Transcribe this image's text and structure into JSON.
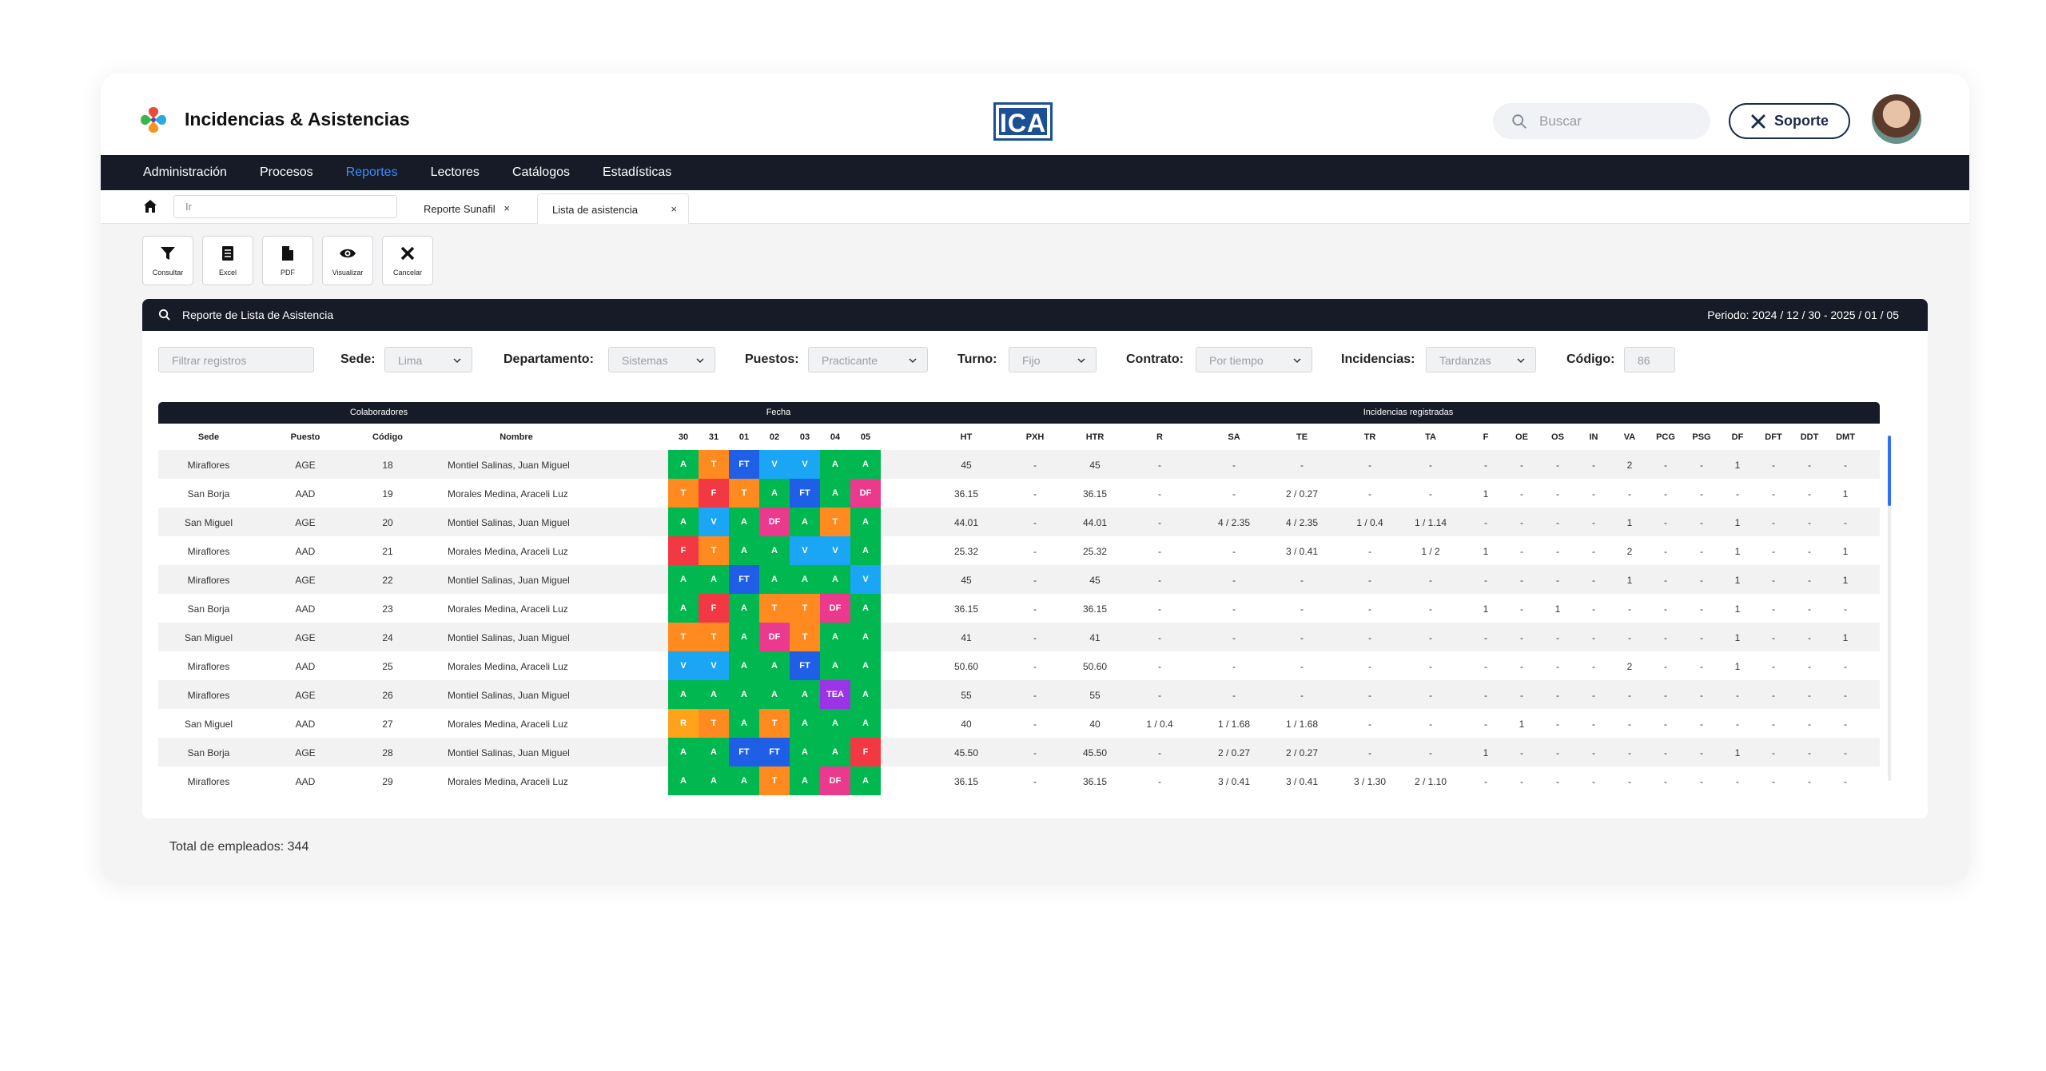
{
  "app": {
    "title": "Incidencias & Asistencias",
    "brand": "ICA"
  },
  "search": {
    "placeholder": "Buscar"
  },
  "support_label": "Soporte",
  "nav": [
    "Administración",
    "Procesos",
    "Reportes",
    "Lectores",
    "Catálogos",
    "Estadísticas"
  ],
  "nav_active": "Reportes",
  "tabs": {
    "ir_placeholder": "Ir",
    "items": [
      "Reporte Sunafil",
      "Lista de asistencia"
    ],
    "close": "×"
  },
  "toolbar": [
    {
      "label": "Consultar",
      "icon": "filter-icon"
    },
    {
      "label": "Excel",
      "icon": "excel-icon"
    },
    {
      "label": "PDF",
      "icon": "pdf-icon"
    },
    {
      "label": "Visualizar",
      "icon": "eye-icon"
    },
    {
      "label": "Cancelar",
      "icon": "close-icon"
    }
  ],
  "report": {
    "title": "Reporte de Lista de Asistencia",
    "period": "Periodo: 2024 / 12 / 30 - 2025 / 01 / 05"
  },
  "filters": {
    "search_placeholder": "Filtrar registros",
    "sede_label": "Sede:",
    "sede": "Lima",
    "dep_label": "Departamento:",
    "dep": "Sistemas",
    "puestos_label": "Puestos:",
    "puestos": "Practicante",
    "turno_label": "Turno:",
    "turno": "Fijo",
    "contrato_label": "Contrato:",
    "contrato": "Por tiempo",
    "inc_label": "Incidencias:",
    "inc": "Tardanzas",
    "codigo_label": "Código:",
    "codigo": "86"
  },
  "groups": [
    "Colaboradores",
    "Fecha",
    "Incidencias registradas"
  ],
  "columns": [
    "Sede",
    "Puesto",
    "Código",
    "Nombre",
    "30",
    "31",
    "01",
    "02",
    "03",
    "04",
    "05",
    "HT",
    "PXH",
    "HTR",
    "R",
    "SA",
    "TE",
    "TR",
    "TA",
    "F",
    "OE",
    "OS",
    "IN",
    "VA",
    "PCG",
    "PSG",
    "DF",
    "DFT",
    "DDT",
    "DMT"
  ],
  "status_colors": {
    "A": "#00b84f",
    "T": "#ff8a1f",
    "FT": "#1f5fe6",
    "V": "#1aa6f5",
    "F": "#f23842",
    "DF": "#eb3a8e",
    "TEA": "#9b34e6",
    "R": "#ffa31a"
  },
  "rows": [
    {
      "sede": "Miraflores",
      "puesto": "AGE",
      "codigo": "18",
      "nombre": "Montiel Salinas, Juan Miguel",
      "dias": [
        "A",
        "T",
        "FT",
        "V",
        "V",
        "A",
        "A"
      ],
      "inc": [
        "45",
        "-",
        "45",
        "-",
        "-",
        "-",
        "-",
        "-",
        "-",
        "-",
        "-",
        "-",
        "2",
        "-",
        "-",
        "1",
        "-",
        "-",
        "-"
      ]
    },
    {
      "sede": "San Borja",
      "puesto": "AAD",
      "codigo": "19",
      "nombre": "Morales Medina, Araceli Luz",
      "dias": [
        "T",
        "F",
        "T",
        "A",
        "FT",
        "A",
        "DF"
      ],
      "inc": [
        "36.15",
        "-",
        "36.15",
        "-",
        "-",
        "2 / 0.27",
        "-",
        "-",
        "1",
        "-",
        "-",
        "-",
        "-",
        "-",
        "-",
        "-",
        "-",
        "-",
        "1"
      ]
    },
    {
      "sede": "San Miguel",
      "puesto": "AGE",
      "codigo": "20",
      "nombre": "Montiel Salinas, Juan Miguel",
      "dias": [
        "A",
        "V",
        "A",
        "DF",
        "A",
        "T",
        "A"
      ],
      "inc": [
        "44.01",
        "-",
        "44.01",
        "-",
        "4 / 2.35",
        "4 / 2.35",
        "1 / 0.4",
        "1 / 1.14",
        "-",
        "-",
        "-",
        "-",
        "1",
        "-",
        "-",
        "1",
        "-",
        "-",
        "-"
      ]
    },
    {
      "sede": "Miraflores",
      "puesto": "AAD",
      "codigo": "21",
      "nombre": "Morales Medina, Araceli Luz",
      "dias": [
        "F",
        "T",
        "A",
        "A",
        "V",
        "V",
        "A"
      ],
      "inc": [
        "25.32",
        "-",
        "25.32",
        "-",
        "-",
        "3 / 0.41",
        "-",
        "1 / 2",
        "1",
        "-",
        "-",
        "-",
        "2",
        "-",
        "-",
        "1",
        "-",
        "-",
        "1"
      ]
    },
    {
      "sede": "Miraflores",
      "puesto": "AGE",
      "codigo": "22",
      "nombre": "Montiel Salinas, Juan Miguel",
      "dias": [
        "A",
        "A",
        "FT",
        "A",
        "A",
        "A",
        "V"
      ],
      "inc": [
        "45",
        "-",
        "45",
        "-",
        "-",
        "-",
        "-",
        "-",
        "-",
        "-",
        "-",
        "-",
        "1",
        "-",
        "-",
        "1",
        "-",
        "-",
        "1"
      ]
    },
    {
      "sede": "San Borja",
      "puesto": "AAD",
      "codigo": "23",
      "nombre": "Morales Medina, Araceli Luz",
      "dias": [
        "A",
        "F",
        "A",
        "T",
        "T",
        "DF",
        "A"
      ],
      "inc": [
        "36.15",
        "-",
        "36.15",
        "-",
        "-",
        "-",
        "-",
        "-",
        "1",
        "-",
        "1",
        "-",
        "-",
        "-",
        "-",
        "1",
        "-",
        "-",
        "-"
      ]
    },
    {
      "sede": "San Miguel",
      "puesto": "AGE",
      "codigo": "24",
      "nombre": "Montiel Salinas, Juan Miguel",
      "dias": [
        "T",
        "T",
        "A",
        "DF",
        "T",
        "A",
        "A"
      ],
      "inc": [
        "41",
        "-",
        "41",
        "-",
        "-",
        "-",
        "-",
        "-",
        "-",
        "-",
        "-",
        "-",
        "-",
        "-",
        "-",
        "1",
        "-",
        "-",
        "1"
      ]
    },
    {
      "sede": "Miraflores",
      "puesto": "AAD",
      "codigo": "25",
      "nombre": "Morales Medina, Araceli Luz",
      "dias": [
        "V",
        "V",
        "A",
        "A",
        "FT",
        "A",
        "A"
      ],
      "inc": [
        "50.60",
        "-",
        "50.60",
        "-",
        "-",
        "-",
        "-",
        "-",
        "-",
        "-",
        "-",
        "-",
        "2",
        "-",
        "-",
        "1",
        "-",
        "-",
        "-"
      ]
    },
    {
      "sede": "Miraflores",
      "puesto": "AGE",
      "codigo": "26",
      "nombre": "Montiel Salinas, Juan Miguel",
      "dias": [
        "A",
        "A",
        "A",
        "A",
        "A",
        "TEA",
        "A"
      ],
      "inc": [
        "55",
        "-",
        "55",
        "-",
        "-",
        "-",
        "-",
        "-",
        "-",
        "-",
        "-",
        "-",
        "-",
        "-",
        "-",
        "-",
        "-",
        "-",
        "-"
      ]
    },
    {
      "sede": "San Miguel",
      "puesto": "AAD",
      "codigo": "27",
      "nombre": "Morales Medina, Araceli Luz",
      "dias": [
        "R",
        "T",
        "A",
        "T",
        "A",
        "A",
        "A"
      ],
      "inc": [
        "40",
        "-",
        "40",
        "1 / 0.4",
        "1 / 1.68",
        "1 / 1.68",
        "-",
        "-",
        "-",
        "1",
        "-",
        "-",
        "-",
        "-",
        "-",
        "-",
        "-",
        "-",
        "-"
      ]
    },
    {
      "sede": "San Borja",
      "puesto": "AGE",
      "codigo": "28",
      "nombre": "Montiel Salinas, Juan Miguel",
      "dias": [
        "A",
        "A",
        "FT",
        "FT",
        "A",
        "A",
        "F"
      ],
      "inc": [
        "45.50",
        "-",
        "45.50",
        "-",
        "2 / 0.27",
        "2 / 0.27",
        "-",
        "-",
        "1",
        "-",
        "-",
        "-",
        "-",
        "-",
        "-",
        "1",
        "-",
        "-",
        "-"
      ]
    },
    {
      "sede": "Miraflores",
      "puesto": "AAD",
      "codigo": "29",
      "nombre": "Morales Medina, Araceli Luz",
      "dias": [
        "A",
        "A",
        "A",
        "T",
        "A",
        "DF",
        "A"
      ],
      "inc": [
        "36.15",
        "-",
        "36.15",
        "-",
        "3 / 0.41",
        "3 / 0.41",
        "3 / 1.30",
        "2 / 1.10",
        "-",
        "-",
        "-",
        "-",
        "-",
        "-",
        "-",
        "-",
        "-",
        "-",
        "-"
      ]
    }
  ],
  "total": "Total de empleados: 344"
}
